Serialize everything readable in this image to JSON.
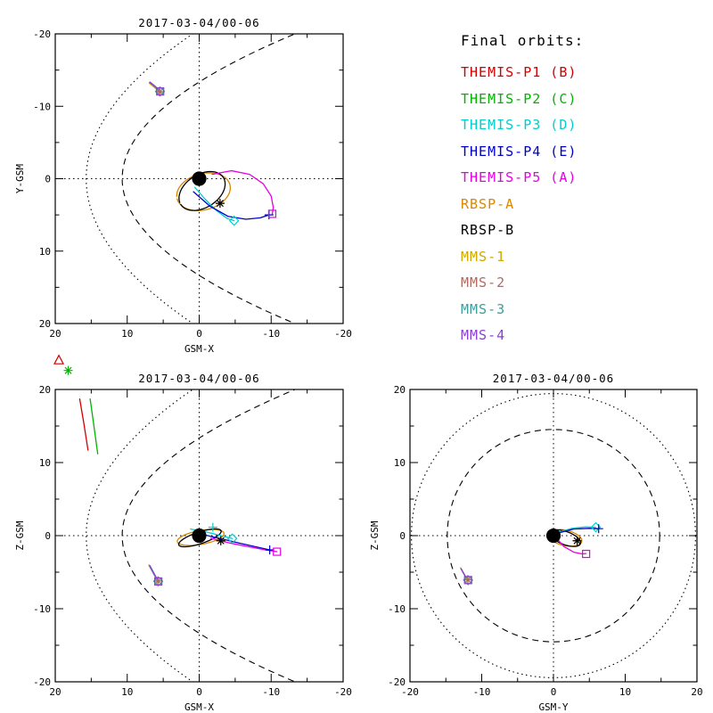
{
  "legend": {
    "title": "Final orbits:",
    "items": [
      {
        "id": "themis-p1",
        "label": "THEMIS-P1 (B)",
        "color": "#d40000"
      },
      {
        "id": "themis-p2",
        "label": "THEMIS-P2 (C)",
        "color": "#00b400"
      },
      {
        "id": "themis-p3",
        "label": "THEMIS-P3 (D)",
        "color": "#00cdcd"
      },
      {
        "id": "themis-p4",
        "label": "THEMIS-P4 (E)",
        "color": "#0000cd"
      },
      {
        "id": "themis-p5",
        "label": "THEMIS-P5 (A)",
        "color": "#e600e6"
      },
      {
        "id": "rbsp-a",
        "label": "RBSP-A",
        "color": "#d98700"
      },
      {
        "id": "rbsp-b",
        "label": "RBSP-B",
        "color": "#000000"
      },
      {
        "id": "mms-1",
        "label": "MMS-1",
        "color": "#cfa900"
      },
      {
        "id": "mms-2",
        "label": "MMS-2",
        "color": "#b26a60"
      },
      {
        "id": "mms-3",
        "label": "MMS-3",
        "color": "#3d9e9e"
      },
      {
        "id": "mms-4",
        "label": "MMS-4",
        "color": "#8a3fd1"
      }
    ]
  },
  "chart_data": [
    {
      "id": "xy",
      "type": "line",
      "title": "2017-03-04/00-06",
      "xlabel": "GSM-X",
      "ylabel": "Y-GSM",
      "xlim": [
        20,
        -20
      ],
      "ylim": [
        -20,
        20
      ],
      "xticks": [
        20,
        10,
        0,
        -10,
        -20
      ],
      "yticks": [
        -20,
        -10,
        0,
        10,
        20
      ],
      "grid": "dotted-zero-lines",
      "earth": {
        "x": 0,
        "y": 0,
        "r": 1.0
      },
      "boundaries": [
        {
          "name": "magnetopause",
          "style": "dashed",
          "shape": "parabola",
          "vertex": 10.7,
          "flare": 0.06
        },
        {
          "name": "bow-shock",
          "style": "dotted",
          "shape": "parabola",
          "vertex": 15.7,
          "flare": 0.037
        }
      ],
      "series": [
        {
          "name": "MMS-1",
          "color": "#cfa900",
          "points": [
            [
              6.95,
              -13.2
            ],
            [
              6.15,
              -12.55
            ],
            [
              5.55,
              -11.95
            ]
          ]
        },
        {
          "name": "MMS-2",
          "color": "#b26a60",
          "points": [
            [
              6.9,
              -13.3
            ],
            [
              6.1,
              -12.65
            ],
            [
              5.5,
              -12.05
            ]
          ]
        },
        {
          "name": "MMS-3",
          "color": "#3d9e9e",
          "points": [
            [
              6.85,
              -13.35
            ],
            [
              6.05,
              -12.7
            ],
            [
              5.45,
              -12.1
            ]
          ]
        },
        {
          "name": "MMS-4",
          "color": "#8a3fd1",
          "points": [
            [
              6.8,
              -13.3
            ],
            [
              6.0,
              -12.65
            ],
            [
              5.42,
              -12.05
            ]
          ]
        },
        {
          "name": "RBSP-A",
          "color": "#d98700",
          "ellipse": {
            "cx": -0.6,
            "cy": 1.8,
            "a": 3.8,
            "b": 2.5,
            "rot_deg": 15
          }
        },
        {
          "name": "RBSP-B",
          "color": "#000000",
          "ellipse": {
            "cx": -0.4,
            "cy": 1.7,
            "a": 3.5,
            "b": 2.3,
            "rot_deg": 32
          }
        },
        {
          "name": "THEMIS-P3",
          "color": "#00cdcd",
          "points": [
            [
              0.6,
              1.2
            ],
            [
              -0.8,
              2.8
            ],
            [
              -2.4,
              4.4
            ],
            [
              -3.9,
              5.5
            ],
            [
              -4.85,
              5.8
            ]
          ]
        },
        {
          "name": "THEMIS-P4",
          "color": "#0000cd",
          "points": [
            [
              0.8,
              1.8
            ],
            [
              -1.5,
              3.8
            ],
            [
              -4.0,
              5.2
            ],
            [
              -6.5,
              5.6
            ],
            [
              -8.5,
              5.4
            ],
            [
              -9.7,
              5.0
            ]
          ]
        },
        {
          "name": "THEMIS-P5",
          "color": "#e600e6",
          "points": [
            [
              -1.8,
              -0.6
            ],
            [
              -4.5,
              -1.1
            ],
            [
              -7.0,
              -0.6
            ],
            [
              -8.9,
              0.7
            ],
            [
              -10.0,
              2.4
            ],
            [
              -10.3,
              4.0
            ],
            [
              -10.15,
              4.85
            ]
          ]
        }
      ],
      "markers": [
        {
          "name": "RBSP-A",
          "symbol": "plus",
          "color": "#d98700",
          "x": -2.9,
          "y": 3.4
        },
        {
          "name": "RBSP-B",
          "symbol": "asterisk",
          "color": "#000000",
          "x": -2.9,
          "y": 3.4
        },
        {
          "name": "THEMIS-P4",
          "symbol": "plus",
          "color": "#0000cd",
          "x": -9.7,
          "y": 5.0
        },
        {
          "name": "THEMIS-P3",
          "symbol": "diamond",
          "color": "#00cdcd",
          "x": -4.85,
          "y": 5.8
        },
        {
          "name": "THEMIS-P5",
          "symbol": "square",
          "color": "#e600e6",
          "x": -10.15,
          "y": 4.85
        },
        {
          "name": "MMS-1",
          "symbol": "plus",
          "color": "#cfa900",
          "x": 5.5,
          "y": -12.0
        },
        {
          "name": "MMS-2",
          "symbol": "asterisk",
          "color": "#b26a60",
          "x": 5.47,
          "y": -12.02
        },
        {
          "name": "MMS-3",
          "symbol": "diamond",
          "color": "#3d9e9e",
          "x": 5.45,
          "y": -12.05
        },
        {
          "name": "MMS-4",
          "symbol": "square",
          "color": "#8a3fd1",
          "x": 5.42,
          "y": -12.05
        }
      ]
    },
    {
      "id": "xz",
      "type": "line",
      "title": "2017-03-04/00-06",
      "xlabel": "GSM-X",
      "ylabel": "Z-GSM",
      "xlim": [
        20,
        -20
      ],
      "ylim": [
        20,
        -20
      ],
      "xticks": [
        20,
        10,
        0,
        -10,
        -20
      ],
      "yticks": [
        20,
        10,
        0,
        -10,
        -20
      ],
      "grid": "dotted-zero-lines",
      "earth": {
        "x": 0,
        "y": 0,
        "r": 1.0
      },
      "boundaries": [
        {
          "name": "magnetopause",
          "style": "dashed",
          "shape": "parabola",
          "vertex": 10.7,
          "flare": 0.06
        },
        {
          "name": "bow-shock",
          "style": "dotted",
          "shape": "parabola",
          "vertex": 15.7,
          "flare": 0.037
        }
      ],
      "series": [
        {
          "name": "THEMIS-P1",
          "color": "#d40000",
          "points": [
            [
              16.6,
              18.7
            ],
            [
              16.0,
              15.2
            ],
            [
              15.45,
              11.7
            ]
          ]
        },
        {
          "name": "THEMIS-P2",
          "color": "#00b400",
          "points": [
            [
              15.15,
              18.7
            ],
            [
              14.6,
              14.8
            ],
            [
              14.1,
              11.2
            ]
          ]
        },
        {
          "name": "MMS-1",
          "color": "#cfa900",
          "points": [
            [
              7.0,
              -4.0
            ],
            [
              6.4,
              -5.1
            ],
            [
              5.8,
              -6.15
            ]
          ]
        },
        {
          "name": "MMS-2",
          "color": "#b26a60",
          "points": [
            [
              6.95,
              -4.1
            ],
            [
              6.35,
              -5.2
            ],
            [
              5.75,
              -6.2
            ]
          ]
        },
        {
          "name": "MMS-3",
          "color": "#3d9e9e",
          "points": [
            [
              6.9,
              -4.15
            ],
            [
              6.3,
              -5.25
            ],
            [
              5.7,
              -6.25
            ]
          ]
        },
        {
          "name": "MMS-4",
          "color": "#8a3fd1",
          "points": [
            [
              6.85,
              -4.1
            ],
            [
              6.25,
              -5.2
            ],
            [
              5.68,
              -6.25
            ]
          ]
        },
        {
          "name": "RBSP-A",
          "color": "#d98700",
          "ellipse": {
            "cx": -0.2,
            "cy": -0.25,
            "a": 3.3,
            "b": 0.95,
            "rot_deg": -10
          }
        },
        {
          "name": "RBSP-B",
          "color": "#000000",
          "ellipse": {
            "cx": -0.1,
            "cy": -0.3,
            "a": 3.1,
            "b": 0.8,
            "rot_deg": -18
          }
        },
        {
          "name": "THEMIS-P3",
          "color": "#00cdcd",
          "points": [
            [
              1.2,
              0.9
            ],
            [
              -0.6,
              0.6
            ],
            [
              -2.6,
              0.1
            ],
            [
              -4.6,
              -0.4
            ]
          ]
        },
        {
          "name": "THEMIS-P4",
          "color": "#0000cd",
          "points": [
            [
              0.5,
              0.4
            ],
            [
              -2.5,
              -0.3
            ],
            [
              -5.5,
              -1.0
            ],
            [
              -8.0,
              -1.55
            ],
            [
              -9.8,
              -1.95
            ]
          ]
        },
        {
          "name": "THEMIS-P5",
          "color": "#e600e6",
          "points": [
            [
              -1.6,
              -0.35
            ],
            [
              -4.2,
              -1.0
            ],
            [
              -6.8,
              -1.5
            ],
            [
              -9.2,
              -1.95
            ],
            [
              -10.8,
              -2.2
            ]
          ]
        }
      ],
      "markers": [
        {
          "name": "THEMIS-P1",
          "symbol": "triangle",
          "color": "#d40000",
          "x": 19.5,
          "y": 24.0
        },
        {
          "name": "THEMIS-P2",
          "symbol": "asterisk",
          "color": "#00b400",
          "x": 18.2,
          "y": 22.6
        },
        {
          "name": "RBSP-A",
          "symbol": "plus",
          "color": "#d98700",
          "x": -3.0,
          "y": -0.7
        },
        {
          "name": "RBSP-B",
          "symbol": "asterisk",
          "color": "#000000",
          "x": -3.0,
          "y": -0.7
        },
        {
          "name": "THEMIS-P3",
          "symbol": "plus",
          "color": "#00cdcd",
          "x": -1.9,
          "y": 1.15
        },
        {
          "name": "THEMIS-P3",
          "symbol": "diamond",
          "color": "#00cdcd",
          "x": -4.6,
          "y": -0.4
        },
        {
          "name": "THEMIS-P4",
          "symbol": "plus",
          "color": "#0000cd",
          "x": -9.8,
          "y": -1.95
        },
        {
          "name": "THEMIS-P5",
          "symbol": "square",
          "color": "#e600e6",
          "x": -10.8,
          "y": -2.2
        },
        {
          "name": "MMS-1",
          "symbol": "plus",
          "color": "#cfa900",
          "x": 5.75,
          "y": -6.2
        },
        {
          "name": "MMS-2",
          "symbol": "asterisk",
          "color": "#b26a60",
          "x": 5.72,
          "y": -6.22
        },
        {
          "name": "MMS-3",
          "symbol": "diamond",
          "color": "#3d9e9e",
          "x": 5.7,
          "y": -6.25
        },
        {
          "name": "MMS-4",
          "symbol": "square",
          "color": "#8a3fd1",
          "x": 5.68,
          "y": -6.27
        }
      ]
    },
    {
      "id": "yz",
      "type": "line",
      "title": "2017-03-04/00-06",
      "xlabel": "GSM-Y",
      "ylabel": "Z-GSM",
      "xlim": [
        -20,
        20
      ],
      "ylim": [
        20,
        -20
      ],
      "xticks": [
        -20,
        -10,
        0,
        10,
        20
      ],
      "yticks": [
        20,
        10,
        0,
        -10,
        -20
      ],
      "grid": "dotted-zero-lines",
      "earth": {
        "x": 0,
        "y": 0,
        "r": 1.0
      },
      "boundaries": [
        {
          "name": "magnetopause",
          "style": "dashed",
          "shape": "circle",
          "r": 14.8
        },
        {
          "name": "bow-shock",
          "style": "dotted",
          "shape": "circle",
          "r": 19.8
        }
      ],
      "series": [
        {
          "name": "MMS-1",
          "color": "#cfa900",
          "points": [
            [
              -12.95,
              -4.4
            ],
            [
              -12.45,
              -5.3
            ],
            [
              -11.95,
              -6.0
            ]
          ]
        },
        {
          "name": "MMS-2",
          "color": "#b26a60",
          "points": [
            [
              -12.9,
              -4.5
            ],
            [
              -12.4,
              -5.4
            ],
            [
              -11.9,
              -6.05
            ]
          ]
        },
        {
          "name": "MMS-3",
          "color": "#3d9e9e",
          "points": [
            [
              -12.85,
              -4.55
            ],
            [
              -12.35,
              -5.45
            ],
            [
              -11.88,
              -6.1
            ]
          ]
        },
        {
          "name": "MMS-4",
          "color": "#8a3fd1",
          "points": [
            [
              -12.9,
              -4.5
            ],
            [
              -12.4,
              -5.38
            ],
            [
              -11.9,
              -6.08
            ]
          ]
        },
        {
          "name": "RBSP-A",
          "color": "#d98700",
          "ellipse": {
            "cx": 1.6,
            "cy": -0.3,
            "a": 2.4,
            "b": 1.05,
            "rot_deg": -12
          }
        },
        {
          "name": "RBSP-B",
          "color": "#000000",
          "ellipse": {
            "cx": 1.7,
            "cy": -0.35,
            "a": 2.2,
            "b": 0.9,
            "rot_deg": -20
          }
        },
        {
          "name": "THEMIS-P3",
          "color": "#00cdcd",
          "points": [
            [
              0.8,
              0.5
            ],
            [
              2.6,
              1.0
            ],
            [
              4.5,
              1.2
            ],
            [
              5.85,
              1.15
            ]
          ]
        },
        {
          "name": "THEMIS-P4",
          "color": "#0000cd",
          "points": [
            [
              0.6,
              0.35
            ],
            [
              2.8,
              0.9
            ],
            [
              5.0,
              1.0
            ],
            [
              6.3,
              0.95
            ]
          ]
        },
        {
          "name": "THEMIS-P5",
          "color": "#e600e6",
          "points": [
            [
              0.4,
              -0.3
            ],
            [
              1.4,
              -1.45
            ],
            [
              2.8,
              -2.25
            ],
            [
              4.0,
              -2.5
            ],
            [
              4.55,
              -2.45
            ]
          ]
        }
      ],
      "markers": [
        {
          "name": "RBSP-A",
          "symbol": "plus",
          "color": "#d98700",
          "x": 3.3,
          "y": -0.7
        },
        {
          "name": "RBSP-B",
          "symbol": "asterisk",
          "color": "#000000",
          "x": 3.3,
          "y": -0.7
        },
        {
          "name": "THEMIS-P3",
          "symbol": "diamond",
          "color": "#00cdcd",
          "x": 5.9,
          "y": 1.15
        },
        {
          "name": "THEMIS-P4",
          "symbol": "plus",
          "color": "#0000cd",
          "x": 6.3,
          "y": 0.95
        },
        {
          "name": "THEMIS-P5",
          "symbol": "square",
          "color": "#e600e6",
          "x": 4.55,
          "y": -2.5
        },
        {
          "name": "MMS-1",
          "symbol": "plus",
          "color": "#cfa900",
          "x": -11.95,
          "y": -6.0
        },
        {
          "name": "MMS-2",
          "symbol": "asterisk",
          "color": "#b26a60",
          "x": -11.92,
          "y": -6.05
        },
        {
          "name": "MMS-3",
          "symbol": "diamond",
          "color": "#3d9e9e",
          "x": -11.9,
          "y": -6.1
        },
        {
          "name": "MMS-4",
          "symbol": "square",
          "color": "#8a3fd1",
          "x": -11.9,
          "y": -6.08
        }
      ]
    }
  ]
}
